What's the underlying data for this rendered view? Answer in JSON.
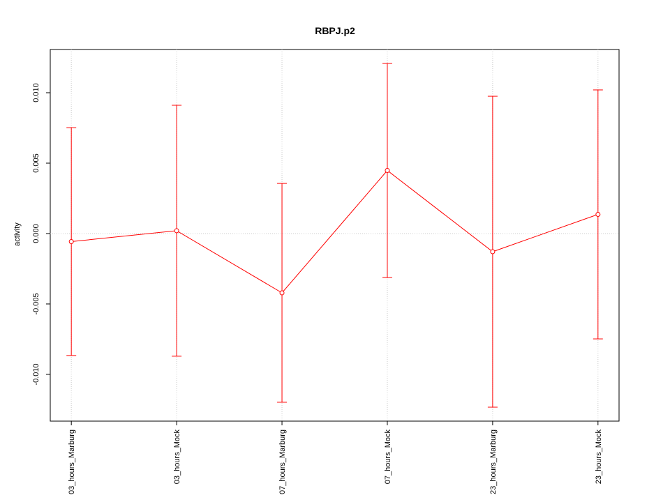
{
  "chart_data": {
    "type": "line",
    "title": "RBPJ.p2",
    "y_label": "activity",
    "categories": [
      "03_hours_Marburg",
      "03_hours_Mock",
      "07_hours_Marburg",
      "07_hours_Mock",
      "23_hours_Marburg",
      "23_hours_Mock"
    ],
    "series": [
      {
        "name": "activity",
        "color": "#ff0000",
        "values": [
          -0.00057,
          0.0002,
          -0.00421,
          0.00448,
          -0.00129,
          0.00136
        ],
        "errors": [
          0.00809,
          0.00891,
          0.00777,
          0.0076,
          0.01104,
          0.00884
        ]
      }
    ],
    "ylim": [
      -0.01332,
      0.01307
    ],
    "yticks": [
      {
        "value": -0.01,
        "label": "-0.010"
      },
      {
        "value": -0.005,
        "label": "-0.005"
      },
      {
        "value": 0,
        "label": "0.000"
      },
      {
        "value": 0.005,
        "label": "0.005"
      },
      {
        "value": 0.01,
        "label": "0.010"
      }
    ],
    "grid": true
  }
}
